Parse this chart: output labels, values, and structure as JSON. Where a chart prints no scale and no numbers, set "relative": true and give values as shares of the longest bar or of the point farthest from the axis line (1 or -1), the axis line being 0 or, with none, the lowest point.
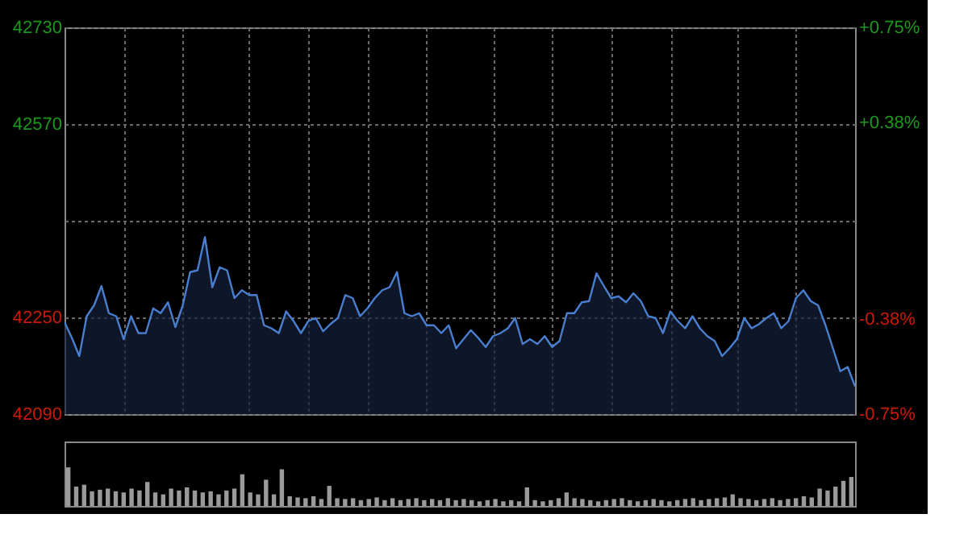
{
  "chart_data": [
    {
      "type": "area",
      "categories": [
        null,
        null,
        null,
        null,
        null,
        null,
        null,
        null,
        null,
        null,
        null,
        null,
        null,
        null,
        null,
        null,
        null,
        null,
        null,
        null,
        null,
        null,
        null,
        null,
        null,
        null,
        null,
        null,
        null,
        null,
        null,
        null,
        null,
        null,
        null,
        null,
        null,
        null,
        null,
        null,
        null,
        null,
        null,
        null,
        null,
        null,
        null,
        null,
        null,
        null,
        null,
        null,
        null,
        null,
        null,
        null,
        null,
        null,
        null,
        null,
        null,
        null,
        null,
        null,
        null,
        null,
        null,
        null,
        null,
        null,
        null,
        null,
        null,
        null,
        null,
        null,
        null,
        null,
        null,
        null,
        null,
        null,
        null,
        null,
        null,
        null,
        null,
        null,
        null,
        null,
        null,
        null,
        null,
        null,
        null,
        null,
        null,
        null,
        null,
        null,
        null,
        null,
        null,
        null,
        null,
        null,
        null,
        null
      ],
      "series": [
        {
          "color": "#4a7fd0",
          "values": [
            42242,
            42216,
            42186,
            42252,
            42270,
            42302,
            42257,
            42252,
            42214,
            42252,
            42224,
            42224,
            42265,
            42257,
            42275,
            42234,
            42270,
            42325,
            42328,
            42383,
            42300,
            42333,
            42328,
            42282,
            42295,
            42287,
            42287,
            42237,
            42232,
            42224,
            42260,
            42244,
            42224,
            42244,
            42249,
            42227,
            42239,
            42249,
            42287,
            42282,
            42252,
            42265,
            42282,
            42295,
            42300,
            42325,
            42257,
            42252,
            42257,
            42237,
            42237,
            42224,
            42237,
            42199,
            42214,
            42229,
            42216,
            42201,
            42219,
            42224,
            42232,
            42249,
            42206,
            42214,
            42206,
            42219,
            42201,
            42211,
            42257,
            42257,
            42275,
            42277,
            42323,
            42302,
            42282,
            42285,
            42275,
            42290,
            42277,
            42252,
            42249,
            42224,
            42260,
            42244,
            42232,
            42252,
            42232,
            42219,
            42211,
            42186,
            42199,
            42214,
            42249,
            42232,
            42239,
            42249,
            42257,
            42232,
            42244,
            42282,
            42295,
            42277,
            42270,
            42237,
            42199,
            42161,
            42168,
            42136
          ]
        }
      ],
      "ylim": [
        42090,
        42730
      ],
      "yticks": [
        42090,
        42250,
        {
          "value": 42410,
          "label": null
        },
        42570,
        42730
      ],
      "y2lim": [
        -0.75,
        0.75
      ],
      "y2ticks": [
        {
          "value": -0.75,
          "label": "-0.75%"
        },
        {
          "value": -0.38,
          "label": "-0.38%"
        },
        {
          "value": 0,
          "label": null
        },
        {
          "value": 0.38,
          "label": "+0.38%"
        },
        {
          "value": 0.75,
          "label": "+0.75%"
        }
      ],
      "grid": true,
      "tick_labels": "y"
    },
    {
      "type": "bar",
      "relative": true,
      "tick_labels": false,
      "color": "#9a9a9a",
      "categories": [
        null,
        null,
        null,
        null,
        null,
        null,
        null,
        null,
        null,
        null,
        null,
        null,
        null,
        null,
        null,
        null,
        null,
        null,
        null,
        null,
        null,
        null,
        null,
        null,
        null,
        null,
        null,
        null,
        null,
        null,
        null,
        null,
        null,
        null,
        null,
        null,
        null,
        null,
        null,
        null,
        null,
        null,
        null,
        null,
        null,
        null,
        null,
        null,
        null,
        null,
        null,
        null,
        null,
        null,
        null,
        null,
        null,
        null,
        null,
        null,
        null,
        null,
        null,
        null,
        null,
        null,
        null,
        null,
        null,
        null,
        null,
        null,
        null,
        null,
        null,
        null,
        null,
        null,
        null,
        null,
        null,
        null,
        null,
        null,
        null,
        null,
        null,
        null,
        null,
        null,
        null,
        null,
        null,
        null,
        null,
        null,
        null,
        null,
        null,
        null
      ],
      "values": [
        1.0,
        0.5,
        0.55,
        0.38,
        0.42,
        0.45,
        0.38,
        0.35,
        0.45,
        0.4,
        0.62,
        0.35,
        0.3,
        0.45,
        0.4,
        0.48,
        0.4,
        0.35,
        0.38,
        0.3,
        0.4,
        0.45,
        0.82,
        0.35,
        0.3,
        0.68,
        0.3,
        0.95,
        0.25,
        0.22,
        0.2,
        0.25,
        0.18,
        0.52,
        0.2,
        0.18,
        0.2,
        0.15,
        0.18,
        0.22,
        0.15,
        0.2,
        0.15,
        0.18,
        0.2,
        0.15,
        0.18,
        0.15,
        0.2,
        0.15,
        0.18,
        0.15,
        0.12,
        0.15,
        0.18,
        0.12,
        0.15,
        0.12,
        0.48,
        0.15,
        0.12,
        0.15,
        0.2,
        0.35,
        0.2,
        0.18,
        0.15,
        0.12,
        0.15,
        0.18,
        0.2,
        0.15,
        0.12,
        0.15,
        0.18,
        0.15,
        0.12,
        0.15,
        0.18,
        0.2,
        0.15,
        0.18,
        0.2,
        0.22,
        0.3,
        0.2,
        0.18,
        0.15,
        0.18,
        0.2,
        0.15,
        0.18,
        0.2,
        0.25,
        0.22,
        0.45,
        0.4,
        0.5,
        0.65,
        0.75
      ]
    }
  ]
}
